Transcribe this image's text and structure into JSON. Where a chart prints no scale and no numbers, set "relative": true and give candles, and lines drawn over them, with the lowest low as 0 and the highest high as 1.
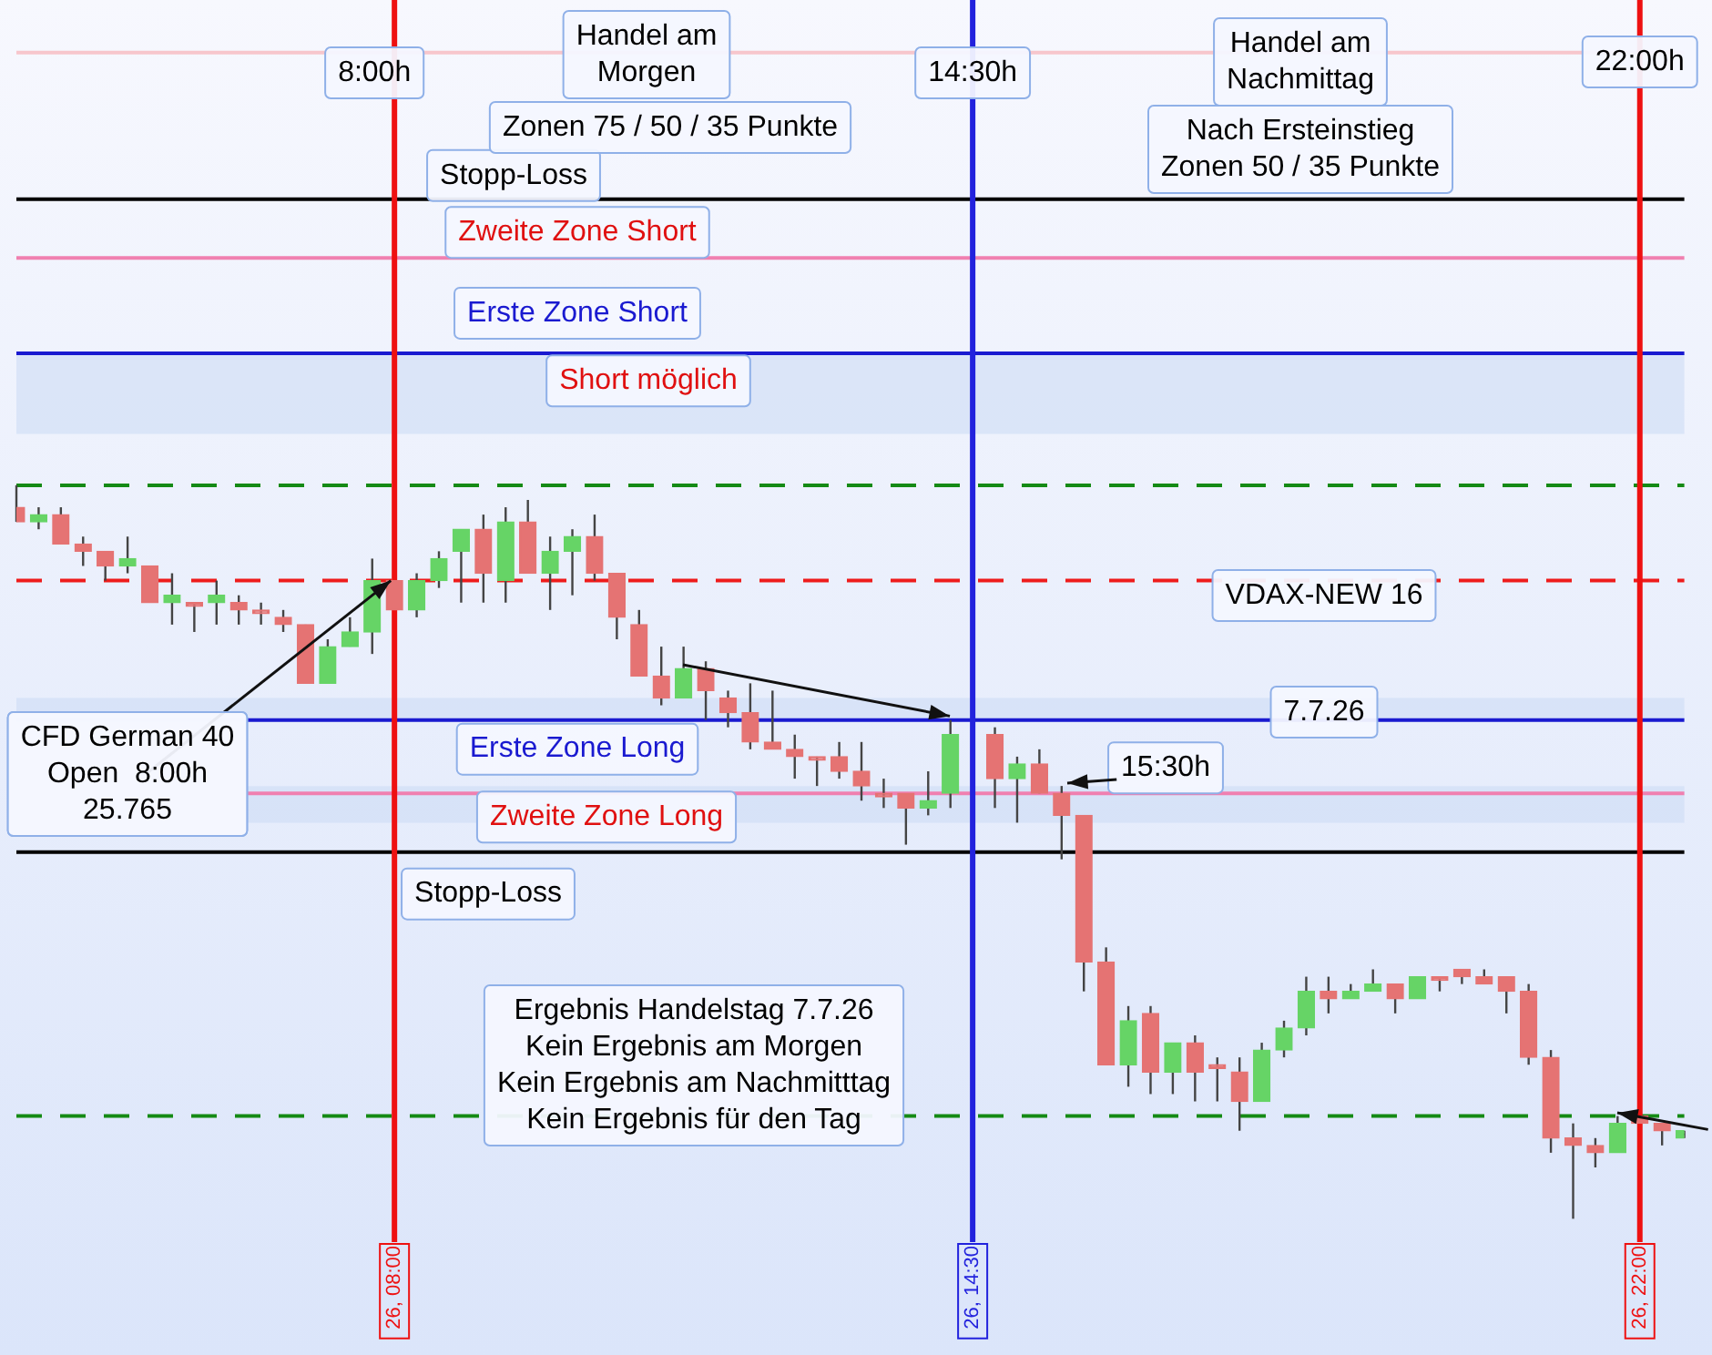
{
  "chart_data": {
    "type": "candlestick",
    "relative": true,
    "categories": [
      null,
      null,
      null,
      null,
      null,
      null,
      null,
      null,
      null,
      null,
      null,
      null,
      null,
      null,
      null,
      null,
      null,
      "26, 08:00",
      null,
      null,
      null,
      null,
      null,
      null,
      null,
      null,
      null,
      null,
      null,
      null,
      null,
      null,
      null,
      null,
      null,
      null,
      null,
      null,
      null,
      null,
      null,
      null,
      null,
      "26, 14:30",
      null,
      null,
      null,
      null,
      null,
      null,
      null,
      null,
      null,
      null,
      null,
      null,
      null,
      null,
      null,
      null,
      null,
      null,
      null,
      null,
      null,
      null,
      null,
      null,
      null,
      null,
      null,
      null,
      null,
      "26, 22:00",
      null,
      null
    ],
    "ohlc": [
      [
        0.97,
        1,
        0.95,
        0.95
      ],
      [
        0.95,
        0.97,
        0.94,
        0.96
      ],
      [
        0.96,
        0.97,
        0.92,
        0.92
      ],
      [
        0.92,
        0.93,
        0.89,
        0.91
      ],
      [
        0.91,
        0.91,
        0.87,
        0.89
      ],
      [
        0.89,
        0.93,
        0.88,
        0.9
      ],
      [
        0.89,
        0.89,
        0.84,
        0.84
      ],
      [
        0.84,
        0.88,
        0.81,
        0.85
      ],
      [
        0.84,
        0.84,
        0.8,
        0.84
      ],
      [
        0.84,
        0.87,
        0.81,
        0.85
      ],
      [
        0.84,
        0.85,
        0.81,
        0.83
      ],
      [
        0.83,
        0.84,
        0.81,
        0.83
      ],
      [
        0.82,
        0.83,
        0.8,
        0.81
      ],
      [
        0.81,
        0.81,
        0.73,
        0.73
      ],
      [
        0.73,
        0.79,
        0.73,
        0.78
      ],
      [
        0.78,
        0.82,
        0.78,
        0.8
      ],
      [
        0.8,
        0.9,
        0.77,
        0.87
      ],
      [
        0.87,
        0.87,
        0.83,
        0.83
      ],
      [
        0.83,
        0.88,
        0.82,
        0.87
      ],
      [
        0.87,
        0.91,
        0.86,
        0.9
      ],
      [
        0.91,
        0.94,
        0.84,
        0.94
      ],
      [
        0.94,
        0.96,
        0.84,
        0.88
      ],
      [
        0.87,
        0.97,
        0.84,
        0.95
      ],
      [
        0.95,
        0.98,
        0.88,
        0.88
      ],
      [
        0.88,
        0.93,
        0.83,
        0.91
      ],
      [
        0.91,
        0.94,
        0.85,
        0.93
      ],
      [
        0.93,
        0.96,
        0.87,
        0.88
      ],
      [
        0.88,
        0.88,
        0.79,
        0.82
      ],
      [
        0.81,
        0.83,
        0.74,
        0.74
      ],
      [
        0.74,
        0.78,
        0.7,
        0.71
      ],
      [
        0.71,
        0.78,
        0.71,
        0.75
      ],
      [
        0.75,
        0.76,
        0.68,
        0.72
      ],
      [
        0.71,
        0.72,
        0.67,
        0.69
      ],
      [
        0.69,
        0.73,
        0.64,
        0.65
      ],
      [
        0.65,
        0.72,
        0.64,
        0.64
      ],
      [
        0.64,
        0.66,
        0.6,
        0.63
      ],
      [
        0.63,
        0.63,
        0.59,
        0.63
      ],
      [
        0.63,
        0.65,
        0.6,
        0.61
      ],
      [
        0.61,
        0.65,
        0.57,
        0.59
      ],
      [
        0.58,
        0.6,
        0.56,
        0.58
      ],
      [
        0.58,
        0.58,
        0.51,
        0.56
      ],
      [
        0.56,
        0.61,
        0.55,
        0.57
      ],
      [
        0.58,
        0.68,
        0.56,
        0.66
      ],
      null,
      [
        0.66,
        0.67,
        0.56,
        0.6
      ],
      [
        0.6,
        0.63,
        0.54,
        0.62
      ],
      [
        0.62,
        0.64,
        0.58,
        0.58
      ],
      [
        0.58,
        0.59,
        0.49,
        0.55
      ],
      [
        0.55,
        0.55,
        0.31,
        0.35
      ],
      [
        0.35,
        0.37,
        0.21,
        0.21
      ],
      [
        0.21,
        0.29,
        0.18,
        0.27
      ],
      [
        0.28,
        0.29,
        0.17,
        0.2
      ],
      [
        0.2,
        0.24,
        0.17,
        0.24
      ],
      [
        0.24,
        0.25,
        0.16,
        0.2
      ],
      [
        0.21,
        0.22,
        0.16,
        0.21
      ],
      [
        0.2,
        0.22,
        0.12,
        0.16
      ],
      [
        0.16,
        0.24,
        0.16,
        0.23
      ],
      [
        0.23,
        0.27,
        0.22,
        0.26
      ],
      [
        0.26,
        0.33,
        0.25,
        0.31
      ],
      [
        0.31,
        0.33,
        0.28,
        0.3
      ],
      [
        0.3,
        0.32,
        0.3,
        0.31
      ],
      [
        0.31,
        0.34,
        0.31,
        0.32
      ],
      [
        0.32,
        0.32,
        0.28,
        0.3
      ],
      [
        0.3,
        0.33,
        0.3,
        0.33
      ],
      [
        0.33,
        0.33,
        0.31,
        0.33
      ],
      [
        0.34,
        0.34,
        0.32,
        0.33
      ],
      [
        0.33,
        0.34,
        0.32,
        0.32
      ],
      [
        0.33,
        0.33,
        0.28,
        0.31
      ],
      [
        0.31,
        0.32,
        0.21,
        0.22
      ],
      [
        0.22,
        0.23,
        0.09,
        0.11
      ],
      [
        0.11,
        0.13,
        0,
        0.1
      ],
      [
        0.1,
        0.11,
        0.07,
        0.09
      ],
      [
        0.09,
        0.14,
        0.09,
        0.13
      ],
      [
        0.14,
        0.14,
        0.13,
        0.13
      ],
      [
        0.13,
        0.13,
        0.1,
        0.12
      ],
      [
        0.11,
        0.12,
        0.11,
        0.12
      ]
    ],
    "colors": [
      "#e57373",
      "#66d466",
      "#e57373",
      "#e57373",
      "#e57373",
      "#66d466",
      "#e57373",
      "#66d466",
      "#e57373",
      "#66d466",
      "#e57373",
      "#e57373",
      "#e57373",
      "#e57373",
      "#66d466",
      "#66d466",
      "#66d466",
      "#e57373",
      "#66d466",
      "#66d466",
      "#66d466",
      "#e57373",
      "#66d466",
      "#e57373",
      "#66d466",
      "#66d466",
      "#e57373",
      "#e57373",
      "#e57373",
      "#e57373",
      "#66d466",
      "#e57373",
      "#e57373",
      "#e57373",
      "#e57373",
      "#e57373",
      "#e57373",
      "#e57373",
      "#e57373",
      "#e57373",
      "#e57373",
      "#66d466",
      "#66d466",
      null,
      "#e57373",
      "#66d466",
      "#e57373",
      "#e57373",
      "#e57373",
      "#e57373",
      "#66d466",
      "#e57373",
      "#66d466",
      "#e57373",
      "#e57373",
      "#e57373",
      "#66d466",
      "#66d466",
      "#66d466",
      "#e57373",
      "#66d466",
      "#66d466",
      "#e57373",
      "#66d466",
      "#e57373",
      "#e57373",
      "#e57373",
      "#e57373",
      "#e57373",
      "#e57373",
      "#e57373",
      "#e57373",
      "#66d466",
      "#e57373",
      "#e57373",
      "#66d466"
    ],
    "ref_lines": [
      {
        "axis": "y",
        "value": 1.59,
        "color": "#f7c6cc"
      },
      {
        "axis": "y",
        "value": 1.39,
        "label": "Stopp-Loss",
        "color": "#000000"
      },
      {
        "axis": "y",
        "value": 1.31,
        "label": "Zweite Zone Short",
        "color": "#f080b0"
      },
      {
        "axis": "y",
        "value": 1.18,
        "label": "Erste Zone Short",
        "color": "#1a1ad0"
      },
      {
        "axis": "y",
        "value": 1.0,
        "color": "#158a15",
        "line_style": "dashed"
      },
      {
        "axis": "y",
        "value": 0.87,
        "color": "#ee1c1c",
        "line_style": "dashed"
      },
      {
        "axis": "y",
        "value": 0.68,
        "label": "Erste Zone Long",
        "color": "#1a1ad0"
      },
      {
        "axis": "y",
        "value": 0.58,
        "label": "Zweite Zone Long",
        "color": "#f080b0"
      },
      {
        "axis": "y",
        "value": 0.5,
        "label": "Stopp-Loss",
        "color": "#000000"
      },
      {
        "axis": "y",
        "value": 0.14,
        "color": "#158a15",
        "line_style": "dashed"
      },
      {
        "axis": "x",
        "value": "26, 08:00",
        "label": "8:00h",
        "color": "#ee1111"
      },
      {
        "axis": "x",
        "value": "26, 14:30",
        "label": "14:30h",
        "color": "#2222dd"
      },
      {
        "axis": "x",
        "value": "26, 22:00",
        "label": "22:00h",
        "color": "#ee1111"
      }
    ],
    "bands": [
      {
        "axis": "y",
        "from": 1.07,
        "to": 1.18,
        "label": "Short möglich",
        "color": "#cddcf5"
      },
      {
        "axis": "y",
        "from": 0.68,
        "to": 0.71,
        "color": "#cddcf5"
      },
      {
        "axis": "y",
        "from": 0.54,
        "to": 0.59,
        "color": "#cddcf5"
      }
    ],
    "annotations": [
      "Handel am\nMorgen",
      "Zonen 75 / 50 / 35 Punkte",
      "Handel am\nNachmittag",
      "Nach Ersteinstieg\nZonen 50 / 35 Punkte",
      "VDAX-NEW 16",
      "7.7.26",
      "Ergebnis Handelstag 7.7.26\nKein Ergebnis am Morgen\nKein Ergebnis am Nachmitttag\nKein Ergebnis für den Tag",
      {
        "text": "CFD German 40\nOpen  8:00h\n25.765",
        "x": "26, 08:00",
        "y": 0.87
      },
      {
        "text": "15:30h",
        "y": 0.59
      }
    ]
  }
}
